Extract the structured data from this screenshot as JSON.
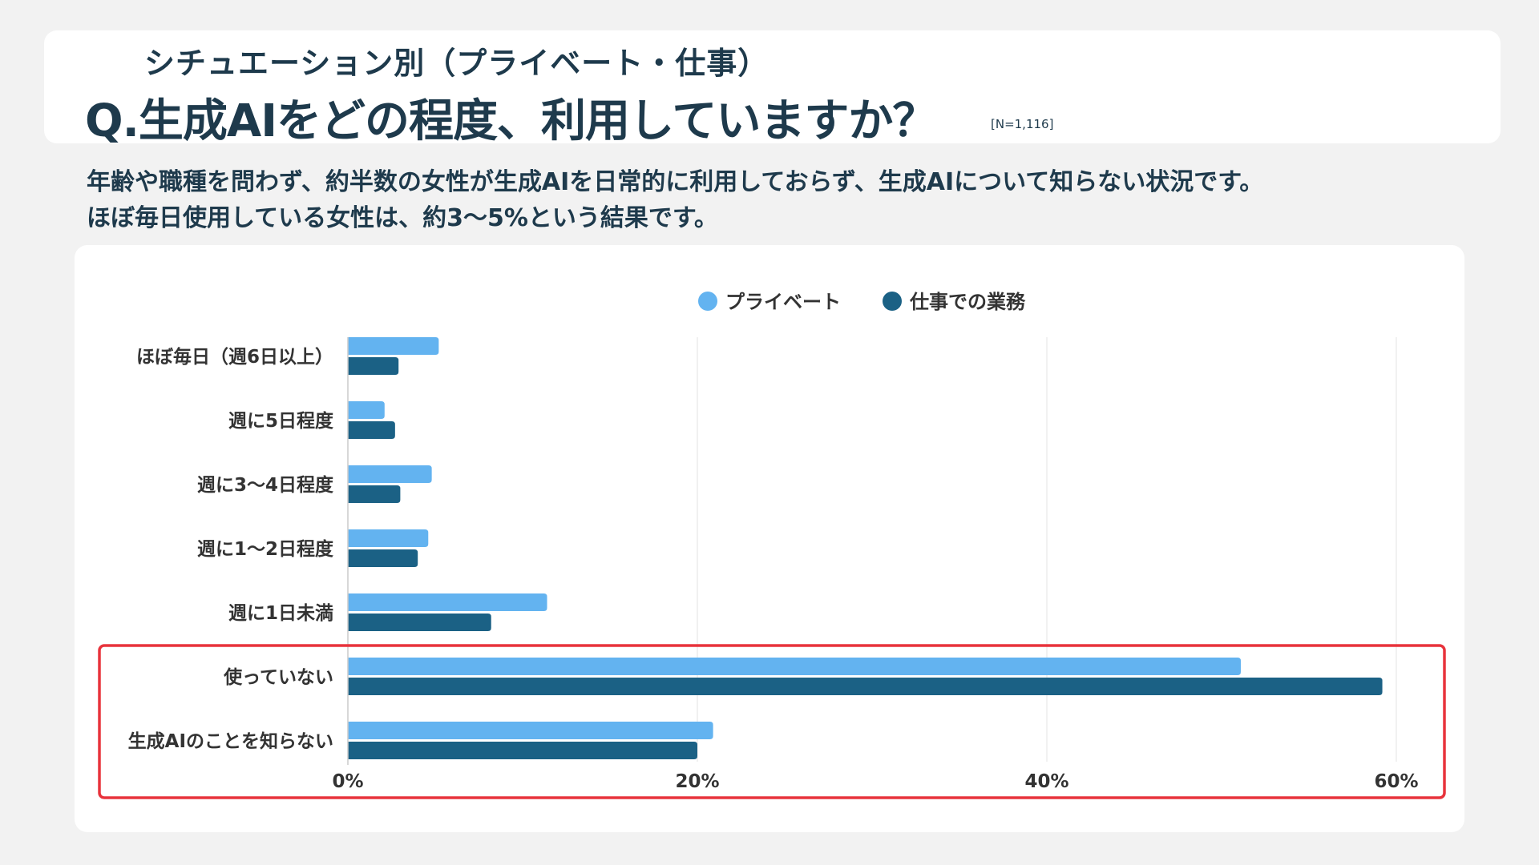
{
  "header": {
    "subtitle": "シチュエーション別（プライベート・仕事）",
    "question": "Q.生成AIをどの程度、利用していますか？",
    "sample_size": "[N=1,116]"
  },
  "description": {
    "line1": "年齢や職種を問わず、約半数の女性が生成AIを日常的に利用しておらず、生成AIについて知らない状況です。",
    "line2": "ほぼ毎日使用している女性は、約3〜5%という結果です。"
  },
  "colors": {
    "private": "#63b3f0",
    "work": "#1b6185",
    "highlight": "#e8333c",
    "grid": "#e3e3e3"
  },
  "chart_data": {
    "type": "bar",
    "orientation": "horizontal",
    "categories": [
      "ほぼ毎日（週6日以上）",
      "週に5日程度",
      "週に3～4日程度",
      "週に1～2日程度",
      "週に1日未満",
      "使っていない",
      "生成AIのことを知らない"
    ],
    "series": [
      {
        "name": "プライベート",
        "values": [
          5.2,
          2.1,
          4.8,
          4.6,
          11.4,
          51.1,
          20.9
        ]
      },
      {
        "name": "仕事での業務",
        "values": [
          2.9,
          2.7,
          3.0,
          4.0,
          8.2,
          59.2,
          20.0
        ]
      }
    ],
    "xlim": [
      0,
      60
    ],
    "ticks": [
      "0%",
      "20%",
      "40%",
      "60%"
    ],
    "tick_values": [
      0,
      20,
      40,
      60
    ],
    "grid": true,
    "legend_position": "top-center",
    "highlighted_categories": [
      "使っていない",
      "生成AIのことを知らない"
    ]
  }
}
